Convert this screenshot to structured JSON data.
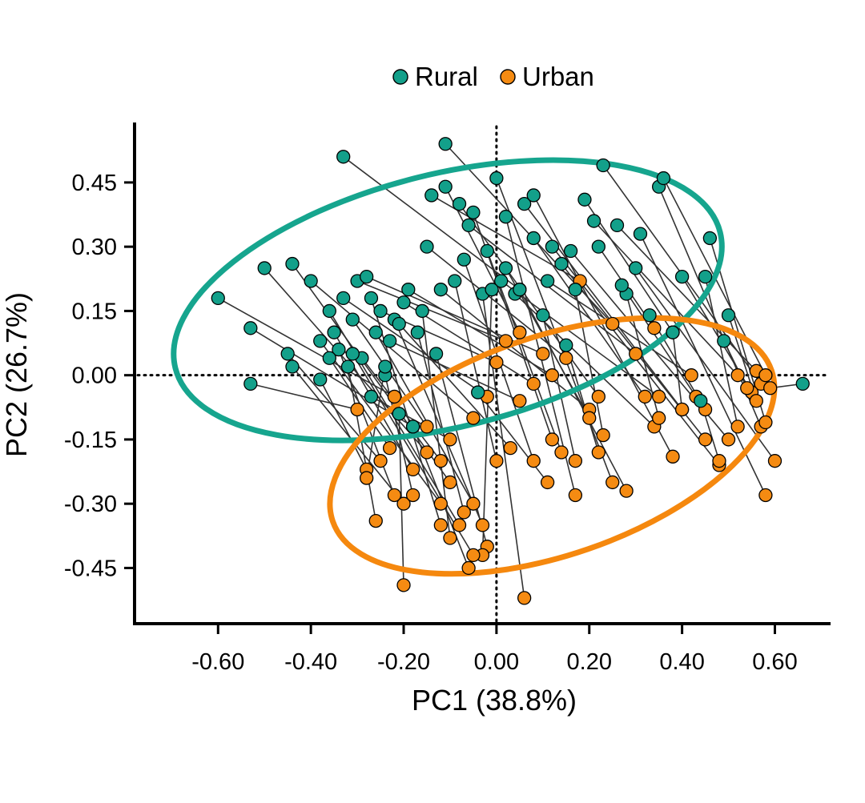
{
  "chart_data": {
    "type": "scatter",
    "title": "",
    "xlabel": "PC1 (38.8%)",
    "ylabel": "PC2 (26.7%)",
    "xlim": [
      -0.78,
      0.72
    ],
    "ylim": [
      -0.58,
      0.59
    ],
    "xticks": [
      -0.6,
      -0.4,
      -0.2,
      0.0,
      0.2,
      0.4,
      0.6
    ],
    "xtick_labels": [
      "-0.60",
      "-0.40",
      "-0.20",
      "0.00",
      "0.20",
      "0.40",
      "0.60"
    ],
    "yticks": [
      0.45,
      0.3,
      0.15,
      0.0,
      -0.15,
      -0.3,
      -0.45
    ],
    "ytick_labels": [
      "0.45",
      "0.30",
      "0.15",
      "0.00",
      "-0.15",
      "-0.30",
      "-0.45"
    ],
    "reference_lines": {
      "x": 0,
      "y": 0,
      "style": "dotted"
    },
    "legend": {
      "position": "top-center",
      "entries": [
        "Rural",
        "Urban"
      ]
    },
    "colors": {
      "Rural": "#13a08a",
      "Urban": "#f58b12",
      "ellipse_rural": "#16a58e",
      "ellipse_urban": "#f5880e",
      "connector": "#333333"
    },
    "ellipses": [
      {
        "series": "Rural",
        "center": [
          -0.105,
          0.175
        ],
        "semi_axes": [
          0.605,
          0.295
        ],
        "angle_deg": 14
      },
      {
        "series": "Urban",
        "center": [
          0.12,
          -0.165
        ],
        "semi_axes": [
          0.5,
          0.255
        ],
        "angle_deg": 19
      }
    ],
    "pairs_note": "Each Rural point is connected by a line to its paired Urban point.",
    "pairs": [
      {
        "rural": [
          -0.6,
          0.18
        ],
        "urban": [
          -0.22,
          -0.05
        ]
      },
      {
        "rural": [
          -0.53,
          -0.02
        ],
        "urban": [
          -0.3,
          -0.08
        ]
      },
      {
        "rural": [
          -0.53,
          0.11
        ],
        "urban": [
          -0.18,
          -0.12
        ]
      },
      {
        "rural": [
          -0.5,
          0.25
        ],
        "urban": [
          -0.15,
          -0.18
        ]
      },
      {
        "rural": [
          -0.44,
          0.26
        ],
        "urban": [
          -0.1,
          -0.25
        ]
      },
      {
        "rural": [
          -0.45,
          0.05
        ],
        "urban": [
          -0.25,
          -0.2
        ]
      },
      {
        "rural": [
          -0.44,
          0.02
        ],
        "urban": [
          -0.2,
          -0.3
        ]
      },
      {
        "rural": [
          -0.4,
          0.22
        ],
        "urban": [
          -0.05,
          -0.1
        ]
      },
      {
        "rural": [
          -0.38,
          0.08
        ],
        "urban": [
          -0.12,
          -0.3
        ]
      },
      {
        "rural": [
          -0.38,
          -0.01
        ],
        "urban": [
          -0.28,
          -0.22
        ]
      },
      {
        "rural": [
          -0.36,
          0.15
        ],
        "urban": [
          -0.08,
          -0.35
        ]
      },
      {
        "rural": [
          -0.35,
          0.1
        ],
        "urban": [
          -0.18,
          -0.22
        ]
      },
      {
        "rural": [
          -0.34,
          0.06
        ],
        "urban": [
          -0.22,
          -0.28
        ]
      },
      {
        "rural": [
          -0.33,
          0.18
        ],
        "urban": [
          -0.02,
          -0.05
        ]
      },
      {
        "rural": [
          -0.33,
          0.51
        ],
        "urban": [
          0.05,
          0.2
        ]
      },
      {
        "rural": [
          -0.32,
          0.02
        ],
        "urban": [
          -0.26,
          -0.34
        ]
      },
      {
        "rural": [
          -0.31,
          0.13
        ],
        "urban": [
          -0.15,
          -0.12
        ]
      },
      {
        "rural": [
          -0.3,
          0.22
        ],
        "urban": [
          0.02,
          0.08
        ]
      },
      {
        "rural": [
          -0.29,
          0.04
        ],
        "urban": [
          -0.12,
          -0.2
        ]
      },
      {
        "rural": [
          -0.28,
          0.23
        ],
        "urban": [
          0.1,
          0.05
        ]
      },
      {
        "rural": [
          -0.27,
          -0.05
        ],
        "urban": [
          -0.1,
          -0.15
        ]
      },
      {
        "rural": [
          -0.26,
          0.1
        ],
        "urban": [
          -0.05,
          -0.3
        ]
      },
      {
        "rural": [
          -0.25,
          0.15
        ],
        "urban": [
          0.0,
          0.03
        ]
      },
      {
        "rural": [
          -0.24,
          0.0
        ],
        "urban": [
          -0.18,
          -0.28
        ]
      },
      {
        "rural": [
          -0.23,
          0.08
        ],
        "urban": [
          0.05,
          -0.06
        ]
      },
      {
        "rural": [
          -0.22,
          0.13
        ],
        "urban": [
          -0.03,
          -0.35
        ]
      },
      {
        "rural": [
          -0.21,
          -0.09
        ],
        "urban": [
          -0.2,
          -0.49
        ]
      },
      {
        "rural": [
          -0.2,
          0.17
        ],
        "urban": [
          0.08,
          -0.02
        ]
      },
      {
        "rural": [
          -0.19,
          0.2
        ],
        "urban": [
          0.12,
          0.0
        ]
      },
      {
        "rural": [
          -0.17,
          0.1
        ],
        "urban": [
          -0.07,
          -0.32
        ]
      },
      {
        "rural": [
          -0.15,
          0.3
        ],
        "urban": [
          0.15,
          0.04
        ]
      },
      {
        "rural": [
          -0.13,
          0.05
        ],
        "urban": [
          -0.02,
          -0.4
        ]
      },
      {
        "rural": [
          -0.12,
          0.2
        ],
        "urban": [
          0.2,
          -0.08
        ]
      },
      {
        "rural": [
          -0.11,
          0.54
        ],
        "urban": [
          0.25,
          0.12
        ]
      },
      {
        "rural": [
          -0.14,
          0.42
        ],
        "urban": [
          0.18,
          0.22
        ]
      },
      {
        "rural": [
          -0.08,
          0.4
        ],
        "urban": [
          0.22,
          -0.05
        ]
      },
      {
        "rural": [
          -0.07,
          0.27
        ],
        "urban": [
          0.08,
          -0.2
        ]
      },
      {
        "rural": [
          -0.06,
          0.35
        ],
        "urban": [
          0.3,
          0.05
        ]
      },
      {
        "rural": [
          -0.05,
          0.38
        ],
        "urban": [
          0.12,
          -0.15
        ]
      },
      {
        "rural": [
          -0.03,
          0.19
        ],
        "urban": [
          0.06,
          -0.52
        ]
      },
      {
        "rural": [
          -0.02,
          0.29
        ],
        "urban": [
          0.14,
          -0.18
        ]
      },
      {
        "rural": [
          0.0,
          0.46
        ],
        "urban": [
          0.25,
          -0.25
        ]
      },
      {
        "rural": [
          0.01,
          0.22
        ],
        "urban": [
          0.35,
          -0.05
        ]
      },
      {
        "rural": [
          0.02,
          0.37
        ],
        "urban": [
          0.17,
          -0.28
        ]
      },
      {
        "rural": [
          0.04,
          0.19
        ],
        "urban": [
          0.34,
          -0.12
        ]
      },
      {
        "rural": [
          0.05,
          0.2
        ],
        "urban": [
          0.28,
          -0.27
        ]
      },
      {
        "rural": [
          0.06,
          0.4
        ],
        "urban": [
          0.4,
          -0.08
        ]
      },
      {
        "rural": [
          0.08,
          0.42
        ],
        "urban": [
          0.38,
          -0.19
        ]
      },
      {
        "rural": [
          0.08,
          0.32
        ],
        "urban": [
          0.32,
          -0.05
        ]
      },
      {
        "rural": [
          0.11,
          0.22
        ],
        "urban": [
          0.42,
          0.0
        ]
      },
      {
        "rural": [
          0.12,
          0.3
        ],
        "urban": [
          0.45,
          -0.15
        ]
      },
      {
        "rural": [
          0.14,
          0.26
        ],
        "urban": [
          0.48,
          -0.21
        ]
      },
      {
        "rural": [
          0.16,
          0.29
        ],
        "urban": [
          0.5,
          -0.15
        ]
      },
      {
        "rural": [
          0.17,
          0.2
        ],
        "urban": [
          0.23,
          -0.14
        ]
      },
      {
        "rural": [
          0.19,
          0.41
        ],
        "urban": [
          0.38,
          0.1
        ]
      },
      {
        "rural": [
          0.21,
          0.36
        ],
        "urban": [
          0.52,
          0.0
        ]
      },
      {
        "rural": [
          0.22,
          0.3
        ],
        "urban": [
          0.34,
          0.11
        ]
      },
      {
        "rural": [
          0.23,
          0.49
        ],
        "urban": [
          0.57,
          -0.02
        ]
      },
      {
        "rural": [
          0.26,
          0.35
        ],
        "urban": [
          0.56,
          0.01
        ]
      },
      {
        "rural": [
          0.28,
          0.19
        ],
        "urban": [
          0.35,
          -0.1
        ]
      },
      {
        "rural": [
          0.3,
          0.25
        ],
        "urban": [
          0.6,
          -0.2
        ]
      },
      {
        "rural": [
          0.31,
          0.33
        ],
        "urban": [
          0.58,
          -0.28
        ]
      },
      {
        "rural": [
          0.33,
          0.14
        ],
        "urban": [
          0.45,
          -0.08
        ]
      },
      {
        "rural": [
          0.35,
          0.44
        ],
        "urban": [
          0.57,
          -0.12
        ]
      },
      {
        "rural": [
          0.36,
          0.46
        ],
        "urban": [
          0.58,
          0.0
        ]
      },
      {
        "rural": [
          0.38,
          0.1
        ],
        "urban": [
          0.4,
          -0.08
        ]
      },
      {
        "rural": [
          0.4,
          0.23
        ],
        "urban": [
          0.55,
          -0.04
        ]
      },
      {
        "rural": [
          0.45,
          0.23
        ],
        "urban": [
          0.52,
          -0.12
        ]
      },
      {
        "rural": [
          0.46,
          0.32
        ],
        "urban": [
          0.58,
          -0.11
        ]
      },
      {
        "rural": [
          0.49,
          0.08
        ],
        "urban": [
          0.54,
          -0.03
        ]
      },
      {
        "rural": [
          0.5,
          0.14
        ],
        "urban": [
          0.56,
          -0.06
        ]
      },
      {
        "rural": [
          0.66,
          -0.02
        ],
        "urban": [
          0.59,
          -0.03
        ]
      },
      {
        "rural": [
          -0.01,
          0.2
        ],
        "urban": [
          -0.03,
          -0.42
        ]
      },
      {
        "rural": [
          -0.09,
          0.22
        ],
        "urban": [
          0.0,
          -0.2
        ]
      },
      {
        "rural": [
          -0.16,
          0.15
        ],
        "urban": [
          -0.1,
          -0.38
        ]
      },
      {
        "rural": [
          -0.27,
          0.18
        ],
        "urban": [
          -0.12,
          -0.35
        ]
      },
      {
        "rural": [
          -0.31,
          0.05
        ],
        "urban": [
          -0.05,
          -0.42
        ]
      },
      {
        "rural": [
          -0.21,
          0.12
        ],
        "urban": [
          0.03,
          -0.17
        ]
      },
      {
        "rural": [
          -0.18,
          -0.12
        ],
        "urban": [
          -0.06,
          -0.45
        ]
      },
      {
        "rural": [
          0.02,
          0.25
        ],
        "urban": [
          0.2,
          -0.1
        ]
      },
      {
        "rural": [
          0.27,
          0.21
        ],
        "urban": [
          0.43,
          -0.05
        ]
      },
      {
        "rural": [
          0.1,
          0.14
        ],
        "urban": [
          0.17,
          -0.2
        ]
      },
      {
        "rural": [
          -0.36,
          0.04
        ],
        "urban": [
          -0.23,
          -0.17
        ]
      },
      {
        "rural": [
          -0.11,
          0.44
        ],
        "urban": [
          0.05,
          0.1
        ]
      },
      {
        "rural": [
          0.15,
          0.07
        ],
        "urban": [
          0.22,
          -0.18
        ]
      },
      {
        "rural": [
          -0.24,
          0.02
        ],
        "urban": [
          -0.28,
          -0.24
        ]
      },
      {
        "rural": [
          -0.04,
          -0.04
        ],
        "urban": [
          0.11,
          -0.25
        ]
      },
      {
        "rural": [
          0.44,
          -0.06
        ],
        "urban": [
          0.48,
          -0.2
        ]
      }
    ]
  }
}
